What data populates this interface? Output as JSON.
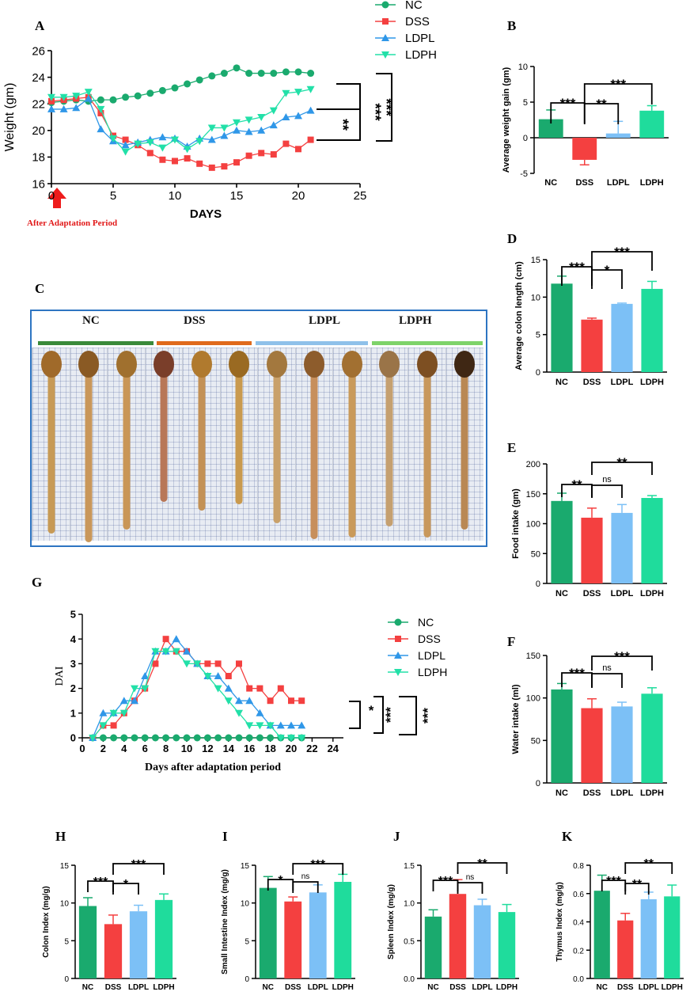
{
  "figure": {
    "panel_labels": {
      "A": "A",
      "B": "B",
      "C": "C",
      "D": "D",
      "E": "E",
      "F": "F",
      "G": "G",
      "H": "H",
      "I": "I",
      "J": "J",
      "K": "K"
    },
    "photo_groups": [
      "NC",
      "DSS",
      "LDPL",
      "LDPH"
    ],
    "adaptation_note": "After Adaptation Period"
  },
  "colors": {
    "NC": "#1aaa6e",
    "DSS": "#f44040",
    "LDPL": "#7cc0f6",
    "LDPH": "#1fdc9c",
    "LDPL_line": "#2f97e8",
    "LDPH_line": "#22e0a8",
    "photo_NC": "#3a8a3a",
    "photo_DSS": "#e06a1c",
    "photo_LDPL": "#8fc1ea",
    "photo_LDPH": "#7ed36a"
  },
  "chart_data": [
    {
      "panel": "A",
      "type": "line",
      "title": "",
      "xlabel": "DAYS",
      "ylabel": "Weight (gm)",
      "xlim": [
        0,
        25
      ],
      "ylim": [
        16,
        26
      ],
      "xticks": [
        0,
        5,
        10,
        15,
        20,
        25
      ],
      "yticks": [
        16,
        18,
        20,
        22,
        24,
        26
      ],
      "x": [
        0,
        1,
        2,
        3,
        4,
        5,
        6,
        7,
        8,
        9,
        10,
        11,
        12,
        13,
        14,
        15,
        16,
        17,
        18,
        19,
        20,
        21
      ],
      "series": [
        {
          "name": "NC",
          "marker": "circle",
          "values": [
            22.1,
            22.2,
            22.3,
            22.2,
            22.3,
            22.3,
            22.5,
            22.6,
            22.8,
            23.0,
            23.2,
            23.5,
            23.8,
            24.1,
            24.3,
            24.7,
            24.3,
            24.3,
            24.3,
            24.4,
            24.4,
            24.3
          ]
        },
        {
          "name": "DSS",
          "marker": "square",
          "values": [
            22.2,
            22.3,
            22.4,
            22.5,
            21.3,
            19.6,
            19.3,
            18.9,
            18.3,
            17.8,
            17.7,
            17.9,
            17.5,
            17.2,
            17.3,
            17.6,
            18.1,
            18.3,
            18.2,
            19.0,
            18.6,
            19.3
          ]
        },
        {
          "name": "LDPL",
          "marker": "triangle-up",
          "values": [
            21.6,
            21.6,
            21.7,
            22.4,
            20.1,
            19.2,
            18.9,
            19.1,
            19.3,
            19.5,
            19.4,
            18.8,
            19.4,
            19.3,
            19.6,
            20.0,
            19.9,
            20.0,
            20.4,
            21.0,
            21.1,
            21.5
          ]
        },
        {
          "name": "LDPH",
          "marker": "triangle-down",
          "values": [
            22.5,
            22.5,
            22.6,
            22.9,
            21.6,
            19.4,
            18.4,
            19.0,
            19.1,
            18.7,
            19.3,
            18.6,
            19.2,
            20.2,
            20.2,
            20.6,
            20.8,
            21.0,
            21.5,
            22.8,
            22.9,
            23.1
          ]
        }
      ],
      "significance": [
        "**",
        "***",
        "***"
      ],
      "legend_position": "top-right"
    },
    {
      "panel": "B",
      "type": "bar",
      "xlabel": "",
      "ylabel": "Average weight gain (gm)",
      "categories": [
        "NC",
        "DSS",
        "LDPL",
        "LDPH"
      ],
      "values": [
        2.6,
        -3.1,
        0.6,
        3.8
      ],
      "errors": [
        1.3,
        0.7,
        1.7,
        0.7
      ],
      "ylim": [
        -5,
        10
      ],
      "yticks": [
        -5,
        0,
        5,
        10
      ],
      "significance": [
        {
          "label": "***",
          "pair": [
            "NC",
            "DSS"
          ]
        },
        {
          "label": "**",
          "pair": [
            "DSS",
            "LDPL"
          ]
        },
        {
          "label": "***",
          "pair": [
            "DSS",
            "LDPH"
          ]
        }
      ]
    },
    {
      "panel": "D",
      "type": "bar",
      "xlabel": "",
      "ylabel": "Average colon length (cm)",
      "categories": [
        "NC",
        "DSS",
        "LDPL",
        "LDPH"
      ],
      "values": [
        11.8,
        7.0,
        9.1,
        11.1
      ],
      "errors": [
        1.0,
        0.2,
        0.1,
        1.0
      ],
      "ylim": [
        0,
        15
      ],
      "yticks": [
        0,
        5,
        10,
        15
      ],
      "significance": [
        {
          "label": "***",
          "pair": [
            "NC",
            "DSS"
          ]
        },
        {
          "label": "*",
          "pair": [
            "DSS",
            "LDPL"
          ]
        },
        {
          "label": "***",
          "pair": [
            "DSS",
            "LDPH"
          ]
        }
      ]
    },
    {
      "panel": "E",
      "type": "bar",
      "xlabel": "",
      "ylabel": "Food intake (gm)",
      "categories": [
        "NC",
        "DSS",
        "LDPL",
        "LDPH"
      ],
      "values": [
        138,
        110,
        118,
        143
      ],
      "errors": [
        13,
        16,
        14,
        4
      ],
      "ylim": [
        0,
        200
      ],
      "yticks": [
        0,
        50,
        100,
        150,
        200
      ],
      "significance": [
        {
          "label": "**",
          "pair": [
            "NC",
            "DSS"
          ]
        },
        {
          "label": "ns",
          "pair": [
            "DSS",
            "LDPL"
          ]
        },
        {
          "label": "**",
          "pair": [
            "DSS",
            "LDPH"
          ]
        }
      ]
    },
    {
      "panel": "F",
      "type": "bar",
      "xlabel": "",
      "ylabel": "Water intake (ml)",
      "categories": [
        "NC",
        "DSS",
        "LDPL",
        "LDPH"
      ],
      "values": [
        110,
        88,
        90,
        105
      ],
      "errors": [
        7,
        11,
        5,
        7
      ],
      "ylim": [
        0,
        150
      ],
      "yticks": [
        0,
        50,
        100,
        150
      ],
      "significance": [
        {
          "label": "***",
          "pair": [
            "NC",
            "DSS"
          ]
        },
        {
          "label": "ns",
          "pair": [
            "DSS",
            "LDPL"
          ]
        },
        {
          "label": "***",
          "pair": [
            "DSS",
            "LDPH"
          ]
        }
      ]
    },
    {
      "panel": "G",
      "type": "line",
      "xlabel": "Days after adaptation period",
      "ylabel": "DAI",
      "xlim": [
        0,
        25
      ],
      "ylim": [
        0,
        5
      ],
      "xticks": [
        0,
        2,
        4,
        6,
        8,
        10,
        12,
        14,
        16,
        18,
        20,
        22,
        24
      ],
      "yticks": [
        0,
        1,
        2,
        3,
        4,
        5
      ],
      "x": [
        1,
        2,
        3,
        4,
        5,
        6,
        7,
        8,
        9,
        10,
        11,
        12,
        13,
        14,
        15,
        16,
        17,
        18,
        19,
        20,
        21
      ],
      "series": [
        {
          "name": "NC",
          "marker": "circle",
          "values": [
            0,
            0,
            0,
            0,
            0,
            0,
            0,
            0,
            0,
            0,
            0,
            0,
            0,
            0,
            0,
            0,
            0,
            0,
            0,
            0,
            0
          ]
        },
        {
          "name": "DSS",
          "marker": "square",
          "values": [
            0,
            0.5,
            0.5,
            1,
            1.5,
            2,
            3,
            4,
            3.5,
            3.5,
            3,
            3,
            3,
            2.5,
            3,
            2,
            2,
            1.5,
            2,
            1.5,
            1.5
          ]
        },
        {
          "name": "LDPL",
          "marker": "triangle-up",
          "values": [
            0,
            1,
            1,
            1.5,
            1.5,
            2.5,
            3.5,
            3.5,
            4,
            3.5,
            3,
            2.5,
            2.5,
            2,
            1.5,
            1.5,
            1,
            0.5,
            0.5,
            0.5,
            0.5
          ]
        },
        {
          "name": "LDPH",
          "marker": "triangle-down",
          "values": [
            0,
            0.5,
            1,
            1,
            2,
            2,
            3.5,
            3.5,
            3.5,
            3,
            3,
            2.5,
            2,
            1.5,
            1,
            0.5,
            0.5,
            0.5,
            0,
            0,
            0
          ]
        }
      ],
      "significance": [
        "*",
        "***",
        "***"
      ],
      "legend_position": "right"
    },
    {
      "panel": "H",
      "type": "bar",
      "xlabel": "",
      "ylabel": "Colon Index (mg/g)",
      "categories": [
        "NC",
        "DSS",
        "LDPL",
        "LDPH"
      ],
      "values": [
        9.6,
        7.2,
        8.9,
        10.4
      ],
      "errors": [
        1.1,
        1.2,
        0.8,
        0.8
      ],
      "ylim": [
        0,
        15
      ],
      "yticks": [
        0,
        5,
        10,
        15
      ],
      "significance": [
        {
          "label": "***",
          "pair": [
            "NC",
            "DSS"
          ]
        },
        {
          "label": "*",
          "pair": [
            "DSS",
            "LDPL"
          ]
        },
        {
          "label": "***",
          "pair": [
            "DSS",
            "LDPH"
          ]
        }
      ]
    },
    {
      "panel": "I",
      "type": "bar",
      "xlabel": "",
      "ylabel": "Small Intestine Index (mg/g)",
      "categories": [
        "NC",
        "DSS",
        "LDPL",
        "LDPH"
      ],
      "values": [
        12.0,
        10.2,
        11.4,
        12.8
      ],
      "errors": [
        1.5,
        0.6,
        1.0,
        1.0
      ],
      "ylim": [
        0,
        15
      ],
      "yticks": [
        0,
        5,
        10,
        15
      ],
      "significance": [
        {
          "label": "*",
          "pair": [
            "NC",
            "DSS"
          ]
        },
        {
          "label": "ns",
          "pair": [
            "DSS",
            "LDPL"
          ]
        },
        {
          "label": "***",
          "pair": [
            "DSS",
            "LDPH"
          ]
        }
      ]
    },
    {
      "panel": "J",
      "type": "bar",
      "xlabel": "",
      "ylabel": "Spleen Index (mg/g)",
      "categories": [
        "NC",
        "DSS",
        "LDPL",
        "LDPH"
      ],
      "values": [
        0.82,
        1.12,
        0.97,
        0.88
      ],
      "errors": [
        0.09,
        0.19,
        0.08,
        0.1
      ],
      "ylim": [
        0,
        1.5
      ],
      "yticks": [
        "0.0",
        "0.5",
        "1.0",
        "1.5"
      ],
      "significance": [
        {
          "label": "***",
          "pair": [
            "NC",
            "DSS"
          ]
        },
        {
          "label": "ns",
          "pair": [
            "DSS",
            "LDPL"
          ]
        },
        {
          "label": "**",
          "pair": [
            "DSS",
            "LDPH"
          ]
        }
      ]
    },
    {
      "panel": "K",
      "type": "bar",
      "xlabel": "",
      "ylabel": "Thymus Index (mg/g)",
      "categories": [
        "NC",
        "DSS",
        "LDPL",
        "LDPH"
      ],
      "values": [
        0.62,
        0.41,
        0.56,
        0.58
      ],
      "errors": [
        0.11,
        0.05,
        0.05,
        0.08
      ],
      "ylim": [
        0,
        0.8
      ],
      "yticks": [
        "0.0",
        "0.2",
        "0.4",
        "0.6",
        "0.8"
      ],
      "significance": [
        {
          "label": "***",
          "pair": [
            "NC",
            "DSS"
          ]
        },
        {
          "label": "**",
          "pair": [
            "DSS",
            "LDPL"
          ]
        },
        {
          "label": "**",
          "pair": [
            "DSS",
            "LDPH"
          ]
        }
      ]
    }
  ]
}
